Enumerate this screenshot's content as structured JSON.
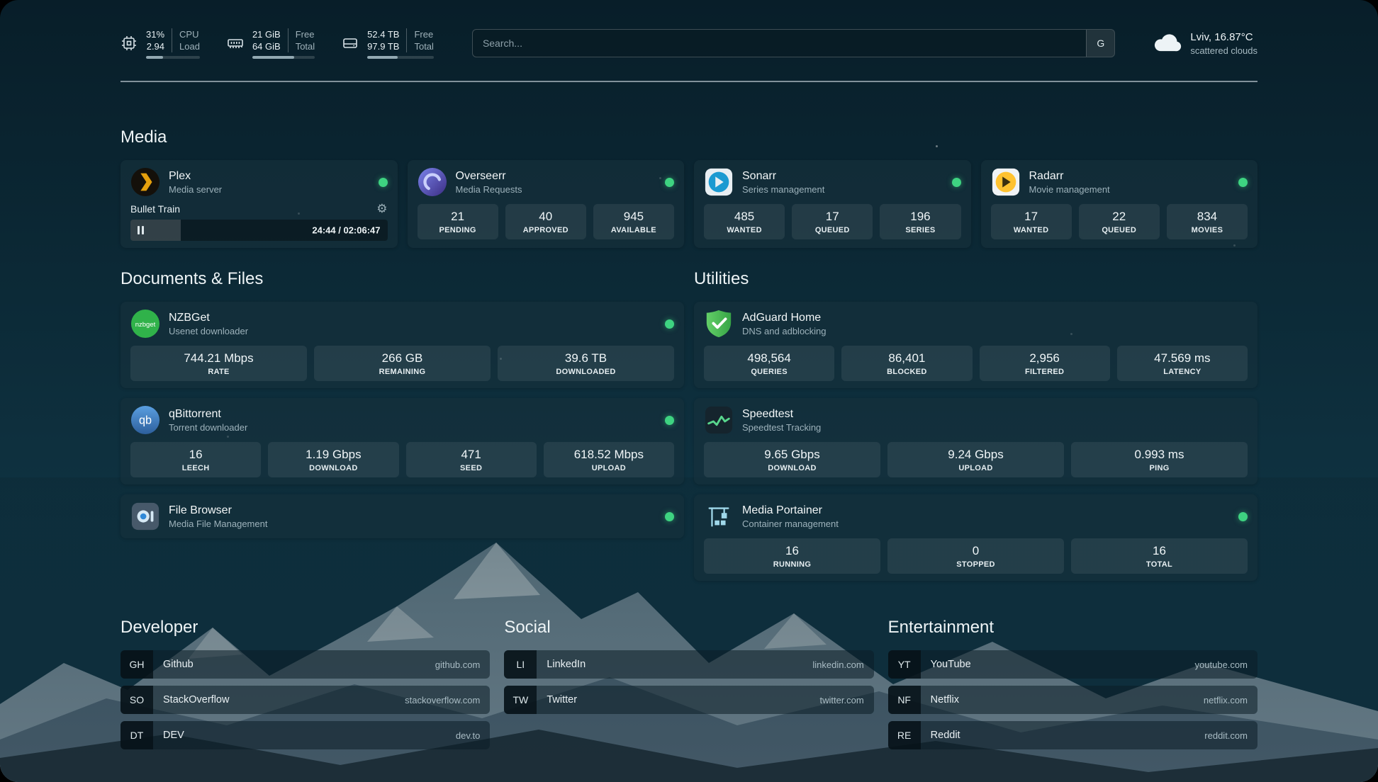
{
  "theme": {
    "status_online_color": "#3ed381",
    "accent_color": "#93a9b2",
    "background_color": "#0c2a37"
  },
  "topbar": {
    "cpu": {
      "icon": "cpu-chip-icon",
      "value1": "31%",
      "label1": "CPU",
      "value2": "2.94",
      "label2": "Load",
      "bar_percent": 31
    },
    "memory": {
      "icon": "memory-icon",
      "value1": "21 GiB",
      "label1": "Free",
      "value2": "64 GiB",
      "label2": "Total",
      "bar_percent": 67
    },
    "disk": {
      "icon": "disk-icon",
      "value1": "52.4 TB",
      "label1": "Free",
      "value2": "97.9 TB",
      "label2": "Total",
      "bar_percent": 46
    },
    "search": {
      "placeholder": "Search...",
      "provider_label": "G"
    },
    "weather": {
      "icon": "cloud-icon",
      "location": "Lviv, 16.87°C",
      "condition": "scattered clouds"
    }
  },
  "sections": {
    "media": {
      "title": "Media",
      "cards": [
        {
          "icon": "plex-icon",
          "name": "Plex",
          "subtitle": "Media server",
          "online": true,
          "player": {
            "title": "Bullet Train",
            "time": "24:44 / 02:06:47",
            "progress_percent": 19.5,
            "state": "paused"
          }
        },
        {
          "icon": "overseerr-icon",
          "name": "Overseerr",
          "subtitle": "Media Requests",
          "online": true,
          "stats": [
            {
              "value": "21",
              "label": "PENDING"
            },
            {
              "value": "40",
              "label": "APPROVED"
            },
            {
              "value": "945",
              "label": "AVAILABLE"
            }
          ]
        },
        {
          "icon": "sonarr-icon",
          "name": "Sonarr",
          "subtitle": "Series management",
          "online": true,
          "stats": [
            {
              "value": "485",
              "label": "WANTED"
            },
            {
              "value": "17",
              "label": "QUEUED"
            },
            {
              "value": "196",
              "label": "SERIES"
            }
          ]
        },
        {
          "icon": "radarr-icon",
          "name": "Radarr",
          "subtitle": "Movie management",
          "online": true,
          "stats": [
            {
              "value": "17",
              "label": "WANTED"
            },
            {
              "value": "22",
              "label": "QUEUED"
            },
            {
              "value": "834",
              "label": "MOVIES"
            }
          ]
        }
      ]
    },
    "documents": {
      "title": "Documents & Files",
      "cards": [
        {
          "icon": "nzbget-icon",
          "name": "NZBGet",
          "subtitle": "Usenet downloader",
          "online": true,
          "stats": [
            {
              "value": "744.21 Mbps",
              "label": "RATE"
            },
            {
              "value": "266 GB",
              "label": "REMAINING"
            },
            {
              "value": "39.6 TB",
              "label": "DOWNLOADED"
            }
          ]
        },
        {
          "icon": "qbittorrent-icon",
          "name": "qBittorrent",
          "subtitle": "Torrent downloader",
          "online": true,
          "stats": [
            {
              "value": "16",
              "label": "LEECH"
            },
            {
              "value": "1.19 Gbps",
              "label": "DOWNLOAD"
            },
            {
              "value": "471",
              "label": "SEED"
            },
            {
              "value": "618.52 Mbps",
              "label": "UPLOAD"
            }
          ]
        },
        {
          "icon": "filebrowser-icon",
          "name": "File Browser",
          "subtitle": "Media File Management",
          "online": true
        }
      ]
    },
    "utilities": {
      "title": "Utilities",
      "cards": [
        {
          "icon": "adguard-icon",
          "name": "AdGuard Home",
          "subtitle": "DNS and adblocking",
          "stats": [
            {
              "value": "498,564",
              "label": "QUERIES"
            },
            {
              "value": "86,401",
              "label": "BLOCKED"
            },
            {
              "value": "2,956",
              "label": "FILTERED"
            },
            {
              "value": "47.569 ms",
              "label": "LATENCY"
            }
          ]
        },
        {
          "icon": "speedtest-icon",
          "name": "Speedtest",
          "subtitle": "Speedtest Tracking",
          "stats": [
            {
              "value": "9.65 Gbps",
              "label": "DOWNLOAD"
            },
            {
              "value": "9.24 Gbps",
              "label": "UPLOAD"
            },
            {
              "value": "0.993 ms",
              "label": "PING"
            }
          ]
        },
        {
          "icon": "portainer-icon",
          "name": "Media Portainer",
          "subtitle": "Container management",
          "online": true,
          "stats": [
            {
              "value": "16",
              "label": "RUNNING"
            },
            {
              "value": "0",
              "label": "STOPPED"
            },
            {
              "value": "16",
              "label": "TOTAL"
            }
          ]
        }
      ]
    },
    "bookmarks": [
      {
        "title": "Developer",
        "items": [
          {
            "abbr": "GH",
            "name": "Github",
            "domain": "github.com"
          },
          {
            "abbr": "SO",
            "name": "StackOverflow",
            "domain": "stackoverflow.com"
          },
          {
            "abbr": "DT",
            "name": "DEV",
            "domain": "dev.to"
          }
        ]
      },
      {
        "title": "Social",
        "items": [
          {
            "abbr": "LI",
            "name": "LinkedIn",
            "domain": "linkedin.com"
          },
          {
            "abbr": "TW",
            "name": "Twitter",
            "domain": "twitter.com"
          }
        ]
      },
      {
        "title": "Entertainment",
        "items": [
          {
            "abbr": "YT",
            "name": "YouTube",
            "domain": "youtube.com"
          },
          {
            "abbr": "NF",
            "name": "Netflix",
            "domain": "netflix.com"
          },
          {
            "abbr": "RE",
            "name": "Reddit",
            "domain": "reddit.com"
          }
        ]
      }
    ]
  }
}
